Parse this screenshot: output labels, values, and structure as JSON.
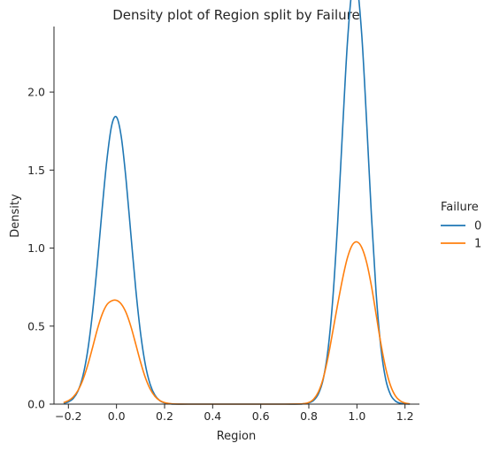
{
  "chart_data": {
    "type": "line",
    "title": "Density plot of Region split by Failure",
    "xlabel": "Region",
    "ylabel": "Density",
    "xlim": [
      -0.26,
      1.26
    ],
    "ylim": [
      0,
      2.42
    ],
    "xticks": [
      -0.2,
      0.0,
      0.2,
      0.4,
      0.6,
      0.8,
      1.0,
      1.2
    ],
    "xtick_labels": [
      "−0.2",
      "0.0",
      "0.2",
      "0.4",
      "0.6",
      "0.8",
      "1.0",
      "1.2"
    ],
    "yticks": [
      0.0,
      0.5,
      1.0,
      1.5,
      2.0
    ],
    "ytick_labels": [
      "0.0",
      "0.5",
      "1.0",
      "1.5",
      "2.0"
    ],
    "grid": false,
    "legend": {
      "title": "Failure",
      "placement": "right"
    },
    "series": [
      {
        "name": "0",
        "color": "#1f77b4",
        "x": [
          -0.22,
          -0.2,
          -0.18,
          -0.16,
          -0.14,
          -0.12,
          -0.1,
          -0.08,
          -0.06,
          -0.04,
          -0.02,
          0.0,
          0.02,
          0.04,
          0.06,
          0.08,
          0.1,
          0.12,
          0.14,
          0.16,
          0.18,
          0.2,
          0.22,
          0.24,
          0.3,
          0.4,
          0.5,
          0.6,
          0.7,
          0.76,
          0.78,
          0.8,
          0.82,
          0.84,
          0.86,
          0.88,
          0.9,
          0.92,
          0.94,
          0.96,
          0.98,
          1.0,
          1.02,
          1.04,
          1.06,
          1.08,
          1.1,
          1.12,
          1.14,
          1.16,
          1.18,
          1.2,
          1.22
        ],
        "y": [
          0.005,
          0.014,
          0.036,
          0.085,
          0.179,
          0.34,
          0.582,
          0.895,
          1.245,
          1.564,
          1.786,
          1.84,
          1.712,
          1.435,
          1.085,
          0.74,
          0.456,
          0.253,
          0.127,
          0.057,
          0.023,
          0.008,
          0.003,
          0.0,
          0.0,
          0.0,
          0.0,
          0.0,
          0.0,
          0.0,
          0.003,
          0.008,
          0.024,
          0.066,
          0.161,
          0.352,
          0.682,
          1.165,
          1.749,
          2.306,
          2.66,
          2.686,
          2.368,
          1.821,
          1.218,
          0.709,
          0.358,
          0.157,
          0.06,
          0.02,
          0.006,
          0.002,
          0.0
        ]
      },
      {
        "name": "1",
        "color": "#ff7f0e",
        "x": [
          -0.22,
          -0.2,
          -0.18,
          -0.16,
          -0.14,
          -0.12,
          -0.1,
          -0.08,
          -0.06,
          -0.04,
          -0.02,
          0.0,
          0.02,
          0.04,
          0.06,
          0.08,
          0.1,
          0.12,
          0.14,
          0.16,
          0.18,
          0.2,
          0.22,
          0.24,
          0.3,
          0.4,
          0.5,
          0.6,
          0.7,
          0.76,
          0.78,
          0.8,
          0.82,
          0.84,
          0.86,
          0.88,
          0.9,
          0.92,
          0.94,
          0.96,
          0.98,
          1.0,
          1.02,
          1.04,
          1.06,
          1.08,
          1.1,
          1.12,
          1.14,
          1.16,
          1.18,
          1.2,
          1.22
        ],
        "y": [
          0.01,
          0.022,
          0.046,
          0.088,
          0.155,
          0.248,
          0.36,
          0.477,
          0.574,
          0.637,
          0.662,
          0.665,
          0.641,
          0.586,
          0.497,
          0.385,
          0.27,
          0.17,
          0.097,
          0.05,
          0.023,
          0.01,
          0.004,
          0.001,
          0.0,
          0.0,
          0.0,
          0.0,
          0.0,
          0.001,
          0.003,
          0.011,
          0.032,
          0.079,
          0.167,
          0.301,
          0.469,
          0.64,
          0.801,
          0.935,
          1.018,
          1.04,
          1.004,
          0.91,
          0.76,
          0.573,
          0.385,
          0.228,
          0.118,
          0.053,
          0.021,
          0.007,
          0.002
        ]
      }
    ]
  }
}
